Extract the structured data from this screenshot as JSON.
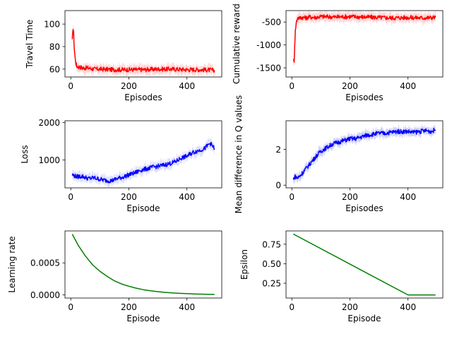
{
  "charts": [
    {
      "type": "line",
      "xlabel": "Episodes",
      "ylabel": "Travel Time",
      "xlim": [
        -20,
        520
      ],
      "ylim": [
        53,
        112
      ],
      "xticks": [
        0,
        200,
        400
      ],
      "yticks": [
        60,
        80,
        100
      ],
      "color": "#ff0000",
      "band_color": "#ffcccc",
      "series": [
        {
          "x": [
            5,
            8,
            10,
            12,
            15,
            18,
            20,
            25,
            30,
            40,
            50,
            60,
            80,
            100,
            150,
            200,
            250,
            300,
            350,
            400,
            450,
            495
          ],
          "y": [
            85,
            97,
            92,
            78,
            70,
            65,
            63,
            62,
            62,
            61,
            61,
            61,
            60,
            60,
            59.5,
            59.5,
            59.5,
            60,
            60,
            59.5,
            59.5,
            59
          ]
        }
      ]
    },
    {
      "type": "line",
      "xlabel": "Episodes",
      "ylabel": "Cumulative reward",
      "xlim": [
        -20,
        520
      ],
      "ylim": [
        -1700,
        -250
      ],
      "xticks": [
        0,
        200,
        400
      ],
      "yticks": [
        -1500,
        -1000,
        -500
      ],
      "color": "#ff0000",
      "band_color": "#ffcccc",
      "series": [
        {
          "x": [
            5,
            8,
            10,
            12,
            15,
            18,
            20,
            25,
            30,
            40,
            50,
            60,
            80,
            100,
            150,
            200,
            250,
            300,
            350,
            400,
            450,
            495
          ],
          "y": [
            -1300,
            -1400,
            -1000,
            -700,
            -520,
            -450,
            -400,
            -420,
            -400,
            -400,
            -410,
            -390,
            -400,
            -380,
            -390,
            -380,
            -390,
            -400,
            -410,
            -400,
            -410,
            -400
          ]
        }
      ]
    },
    {
      "type": "line",
      "xlabel": "Episode",
      "ylabel": "Loss",
      "xlim": [
        -20,
        520
      ],
      "ylim": [
        250,
        2050
      ],
      "xticks": [
        0,
        200,
        400
      ],
      "yticks": [
        1000,
        2000
      ],
      "color": "#0000ff",
      "band_color": "#d8d8ff",
      "series": [
        {
          "x": [
            5,
            20,
            40,
            60,
            80,
            100,
            120,
            140,
            160,
            180,
            200,
            220,
            240,
            260,
            280,
            300,
            320,
            340,
            360,
            380,
            400,
            420,
            440,
            460,
            480,
            495
          ],
          "y": [
            600,
            550,
            560,
            500,
            520,
            480,
            450,
            440,
            500,
            540,
            600,
            650,
            720,
            760,
            800,
            830,
            860,
            900,
            950,
            1050,
            1100,
            1200,
            1250,
            1300,
            1450,
            1300
          ]
        }
      ]
    },
    {
      "type": "line",
      "xlabel": "Episodes",
      "ylabel": "Mean difference in Q values",
      "xlim": [
        -20,
        520
      ],
      "ylim": [
        -0.15,
        3.6
      ],
      "xticks": [
        0,
        200,
        400
      ],
      "yticks": [
        0,
        2
      ],
      "color": "#0000ff",
      "band_color": "#c8c8f4",
      "series": [
        {
          "x": [
            5,
            10,
            20,
            30,
            40,
            60,
            80,
            100,
            120,
            140,
            160,
            180,
            200,
            220,
            240,
            260,
            280,
            300,
            320,
            340,
            360,
            380,
            400,
            420,
            440,
            460,
            480,
            495
          ],
          "y": [
            0.3,
            0.5,
            0.4,
            0.55,
            0.75,
            1.15,
            1.55,
            1.9,
            2.1,
            2.3,
            2.4,
            2.5,
            2.6,
            2.6,
            2.7,
            2.8,
            2.85,
            2.9,
            2.9,
            2.95,
            3.0,
            3.0,
            3.0,
            2.95,
            3.0,
            3.05,
            3.0,
            3.1
          ]
        }
      ]
    },
    {
      "type": "line",
      "xlabel": "Episode",
      "ylabel": "Learning rate",
      "xlim": [
        -20,
        520
      ],
      "ylim": [
        -5e-05,
        0.001
      ],
      "xticks": [
        0,
        200,
        400
      ],
      "yticks": [
        0.0,
        0.0005
      ],
      "ytick_labels": [
        "0.0000",
        "0.0005"
      ],
      "color": "#008000",
      "series": [
        {
          "x": [
            5,
            25,
            50,
            75,
            100,
            125,
            150,
            175,
            200,
            225,
            250,
            275,
            300,
            325,
            350,
            375,
            400,
            425,
            450,
            475,
            495
          ],
          "y": [
            0.00095,
            0.00078,
            0.00061,
            0.00047,
            0.00037,
            0.00029,
            0.00022,
            0.00017,
            0.000135,
            0.000105,
            8e-05,
            6.3e-05,
            4.9e-05,
            3.8e-05,
            3e-05,
            2.3e-05,
            1.8e-05,
            1.4e-05,
            1.1e-05,
            9e-06,
            7e-06
          ]
        }
      ]
    },
    {
      "type": "line",
      "xlabel": "Episode",
      "ylabel": "Epsilon",
      "xlim": [
        -20,
        520
      ],
      "ylim": [
        0.06,
        0.92
      ],
      "xticks": [
        0,
        200,
        400
      ],
      "yticks": [
        0.25,
        0.5,
        0.75
      ],
      "ytick_labels": [
        "0.25",
        "0.50",
        "0.75"
      ],
      "color": "#008000",
      "series": [
        {
          "x": [
            5,
            400,
            495
          ],
          "y": [
            0.88,
            0.1,
            0.1
          ]
        }
      ]
    }
  ]
}
